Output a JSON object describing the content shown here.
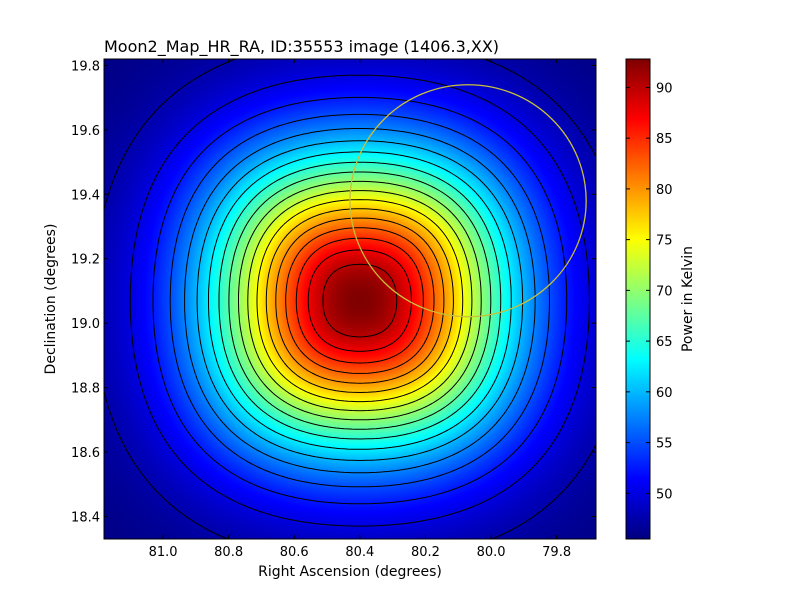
{
  "chart_data": {
    "type": "heatmap",
    "title": "Moon2_Map_HR_RA, ID:35553 image (1406.3,XX)",
    "xlabel": "Right Ascension (degrees)",
    "ylabel": "Declination (degrees)",
    "colorbar_label": "Power in Kelvin",
    "xlim": [
      81.18,
      79.68
    ],
    "ylim": [
      18.33,
      19.82
    ],
    "x_ticks": [
      81.0,
      80.8,
      80.6,
      80.4,
      80.2,
      80.0,
      79.8
    ],
    "x_tick_labels": [
      "81.0",
      "80.8",
      "80.6",
      "80.4",
      "80.2",
      "80.0",
      "79.8"
    ],
    "y_ticks": [
      18.4,
      18.6,
      18.8,
      19.0,
      19.2,
      19.4,
      19.6,
      19.8
    ],
    "y_tick_labels": [
      "18.4",
      "18.6",
      "18.8",
      "19.0",
      "19.2",
      "19.4",
      "19.6",
      "19.8"
    ],
    "colorbar_range": [
      45.5,
      92.8
    ],
    "colorbar_ticks": [
      50,
      55,
      60,
      65,
      70,
      75,
      80,
      85,
      90
    ],
    "colorbar_tick_labels": [
      "50",
      "55",
      "60",
      "65",
      "70",
      "75",
      "80",
      "85",
      "90"
    ],
    "colormap": "jet",
    "peak": {
      "ra": 80.4,
      "dec": 19.07,
      "value": 92.8
    },
    "floor_value": 45.5,
    "contour_levels": [
      47.5,
      50,
      52.5,
      55,
      57.5,
      60,
      62.5,
      65,
      67.5,
      70,
      72.5,
      75,
      77.5,
      80,
      82.5,
      85,
      87.5,
      90
    ],
    "circle": {
      "center_ra": 80.07,
      "center_dec": 19.38,
      "radius_deg": 0.36,
      "color": "#c8c03c"
    },
    "grid": false,
    "contour_color": "#000000"
  }
}
